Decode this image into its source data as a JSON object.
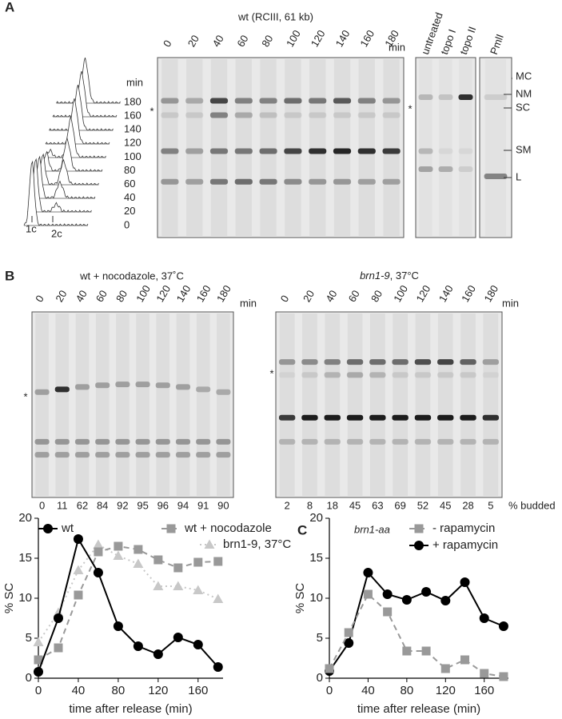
{
  "star": "*",
  "panel_a": {
    "label": "A",
    "gel_title": "wt  (RCIII, 61 kb)",
    "lanes": [
      0,
      20,
      40,
      60,
      80,
      100,
      120,
      140,
      160,
      180
    ],
    "unit": "min",
    "control_lanes": [
      "untreated",
      "topo I",
      "topo II",
      "PmlI"
    ],
    "bands": [
      "MC",
      "NM",
      "SC",
      "SM",
      "L"
    ],
    "flow": {
      "unit": "min",
      "times": [
        180,
        160,
        140,
        120,
        100,
        80,
        60,
        40,
        20,
        0
      ],
      "x_labels": [
        "1c",
        "2c"
      ]
    }
  },
  "panel_b": {
    "label": "B",
    "gel_left": {
      "title": "wt + nocodazole, 37˚C",
      "lanes": [
        0,
        20,
        40,
        60,
        80,
        100,
        120,
        140,
        160,
        180
      ],
      "unit": "min",
      "budded": [
        0,
        11,
        62,
        84,
        92,
        95,
        96,
        94,
        91,
        90
      ]
    },
    "gel_right": {
      "strain": "brn1-9",
      "condition": ", 37°C",
      "lanes": [
        0,
        20,
        40,
        60,
        80,
        100,
        120,
        140,
        160,
        180
      ],
      "unit": "min",
      "budded": [
        2,
        8,
        18,
        45,
        63,
        69,
        52,
        45,
        28,
        5
      ],
      "budded_label": "% budded"
    }
  },
  "panel_c": {
    "label": "C"
  },
  "chart_data": [
    {
      "type": "line",
      "xlabel": "time after release (min)",
      "ylabel": "% SC",
      "x": [
        0,
        20,
        40,
        60,
        80,
        100,
        120,
        140,
        160,
        180
      ],
      "xlim": [
        0,
        185
      ],
      "xticks": [
        0,
        40,
        80,
        120,
        160
      ],
      "ylim": [
        0,
        20
      ],
      "yticks": [
        0,
        5,
        10,
        15,
        20
      ],
      "series": [
        {
          "name": "wt",
          "color": "#000000",
          "marker": "circle",
          "dash": "solid",
          "values": [
            0.8,
            7.5,
            17.4,
            13.2,
            6.5,
            4.0,
            3.0,
            5.1,
            4.2,
            1.4
          ]
        },
        {
          "name": "wt + nocodazole",
          "color": "#999999",
          "marker": "square",
          "dash": "dashed",
          "values": [
            2.3,
            3.8,
            10.4,
            15.8,
            16.5,
            16.1,
            14.8,
            13.8,
            14.5,
            14.6
          ]
        },
        {
          "name": "brn1-9, 37°C",
          "color": "#c8c8c8",
          "marker": "triangle",
          "dash": "dotted",
          "values": [
            4.5,
            8.2,
            13.5,
            16.7,
            15.3,
            14.3,
            11.5,
            11.5,
            11.0,
            9.9
          ]
        }
      ]
    },
    {
      "type": "line",
      "xlabel": "time after release (min)",
      "ylabel": "% SC",
      "annotation": "brn1-aa",
      "x": [
        0,
        20,
        40,
        60,
        80,
        100,
        120,
        140,
        160,
        180
      ],
      "xlim": [
        0,
        185
      ],
      "xticks": [
        0,
        40,
        80,
        120,
        160
      ],
      "ylim": [
        0,
        20
      ],
      "yticks": [
        0,
        5,
        10,
        15,
        20
      ],
      "series": [
        {
          "name": "- rapamycin",
          "color": "#999999",
          "marker": "square",
          "dash": "dashed",
          "values": [
            1.2,
            5.7,
            10.5,
            8.3,
            3.4,
            3.4,
            1.2,
            2.3,
            0.6,
            0.2
          ]
        },
        {
          "name": "+ rapamycin",
          "color": "#000000",
          "marker": "circle",
          "dash": "solid",
          "values": [
            0.9,
            4.4,
            13.2,
            10.5,
            9.8,
            10.8,
            9.7,
            12.0,
            7.5,
            6.5
          ]
        }
      ]
    }
  ]
}
